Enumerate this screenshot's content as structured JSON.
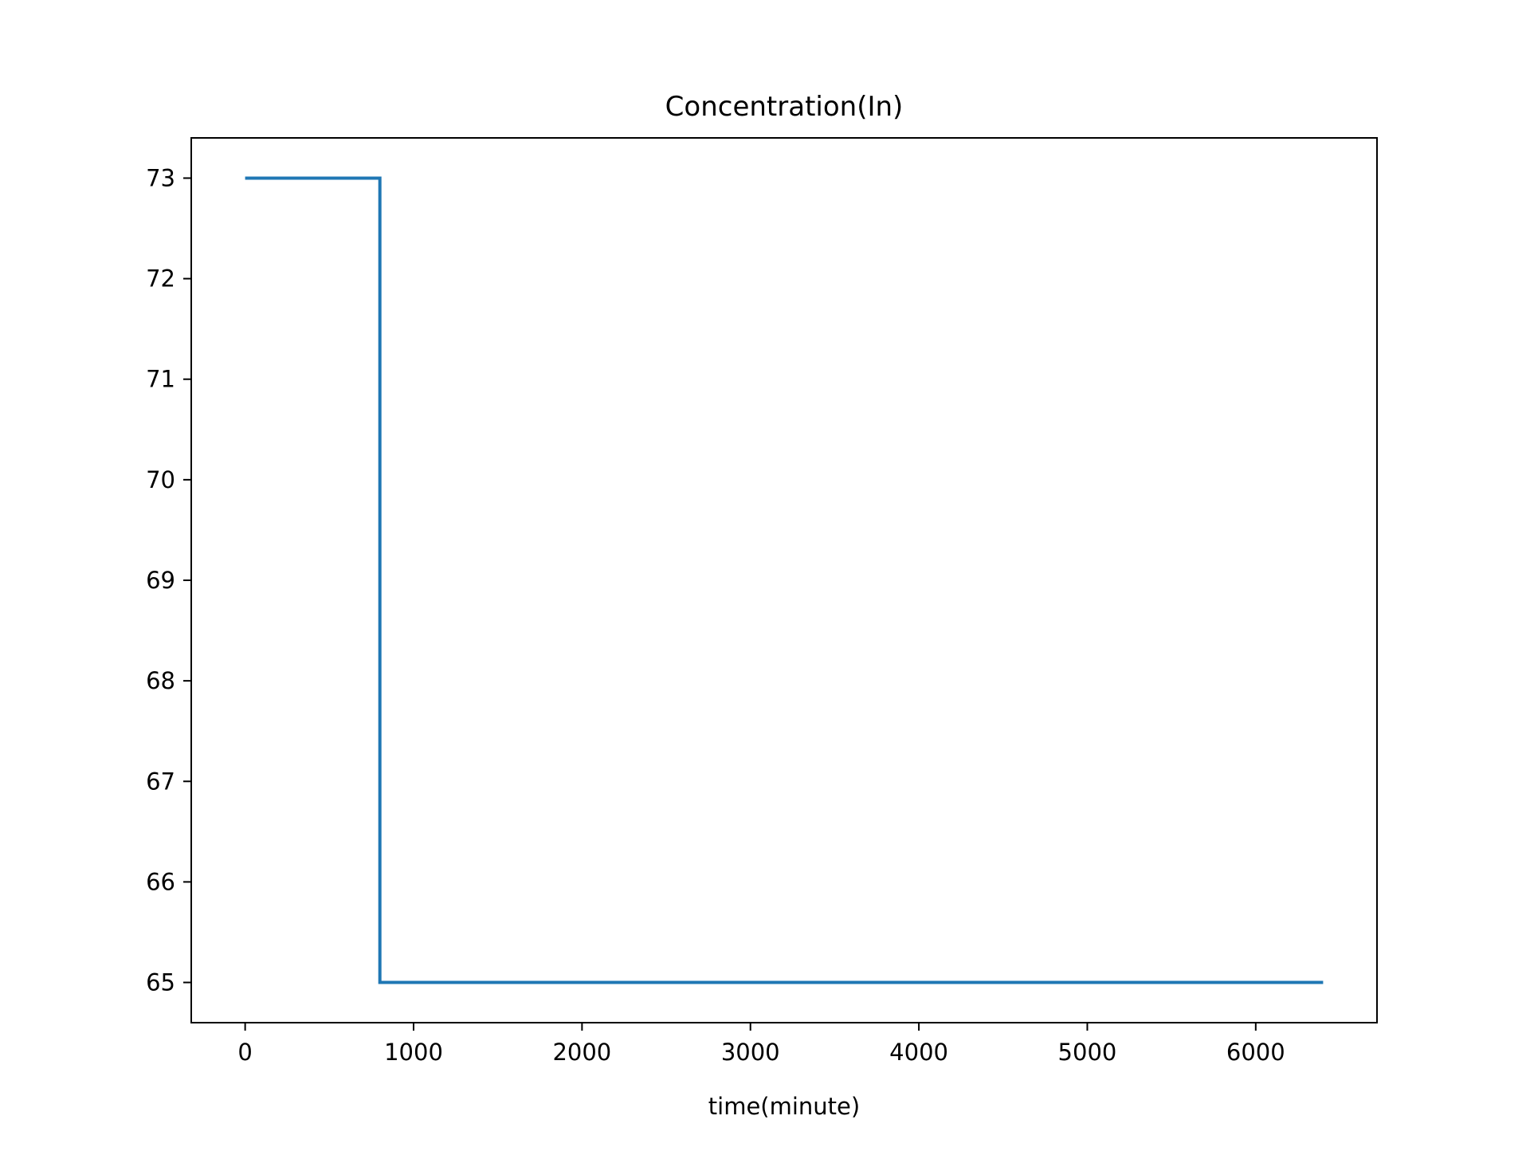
{
  "chart_data": {
    "type": "line",
    "title": "Concentration(In)",
    "xlabel": "time(minute)",
    "ylabel": "",
    "xlim": [
      -320,
      6720
    ],
    "ylim": [
      64.6,
      73.4
    ],
    "x_ticks": [
      0,
      1000,
      2000,
      3000,
      4000,
      5000,
      6000
    ],
    "x_tick_labels": [
      "0",
      "1000",
      "2000",
      "3000",
      "4000",
      "5000",
      "6000"
    ],
    "y_ticks": [
      65,
      66,
      67,
      68,
      69,
      70,
      71,
      72,
      73
    ],
    "y_tick_labels": [
      "65",
      "66",
      "67",
      "68",
      "69",
      "70",
      "71",
      "72",
      "73"
    ],
    "grid": false,
    "series": [
      {
        "color": "#1f77b4",
        "x": [
          0,
          800,
          800,
          6400
        ],
        "y": [
          73,
          73,
          65,
          65
        ]
      }
    ]
  }
}
